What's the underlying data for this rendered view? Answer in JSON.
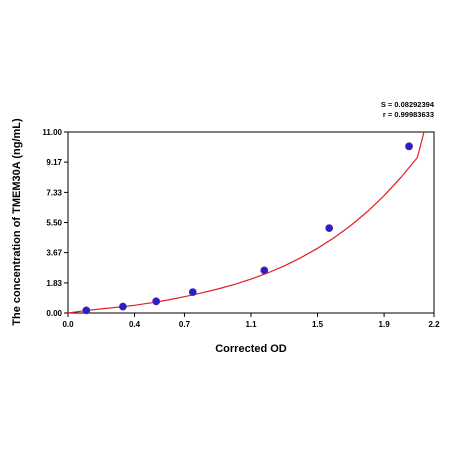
{
  "stats": {
    "s_line": "S = 0.08292394",
    "r_line": "r = 0.99983633"
  },
  "chart_data": {
    "type": "scatter",
    "xlabel": "Corrected OD",
    "ylabel": "The concentration of TMEM30A (ng/mL)",
    "xlim": [
      0,
      2.2
    ],
    "ylim": [
      0,
      11
    ],
    "xticks": [
      "0.0",
      "0.4",
      "0.7",
      "1.1",
      "1.5",
      "1.9",
      "2.2"
    ],
    "xtick_values": [
      0,
      0.4,
      0.7,
      1.1,
      1.5,
      1.9,
      2.2
    ],
    "yticks": [
      "0.00",
      "1.83",
      "3.67",
      "5.50",
      "7.33",
      "9.17",
      "11.00"
    ],
    "ytick_values": [
      0,
      1.83,
      3.67,
      5.5,
      7.33,
      9.17,
      11.0
    ],
    "points": [
      {
        "x": 0.11,
        "y": 0.16
      },
      {
        "x": 0.33,
        "y": 0.39
      },
      {
        "x": 0.53,
        "y": 0.71
      },
      {
        "x": 0.75,
        "y": 1.27
      },
      {
        "x": 1.18,
        "y": 2.59
      },
      {
        "x": 1.57,
        "y": 5.16
      },
      {
        "x": 2.05,
        "y": 10.13
      }
    ],
    "fit_curve": {
      "x": [
        0.0,
        0.1,
        0.2,
        0.3,
        0.4,
        0.5,
        0.6,
        0.7,
        0.8,
        0.9,
        1.0,
        1.1,
        1.2,
        1.3,
        1.4,
        1.5,
        1.6,
        1.7,
        1.8,
        1.9,
        2.0,
        2.1,
        2.14
      ],
      "y": [
        0.0,
        0.14,
        0.25,
        0.35,
        0.47,
        0.62,
        0.79,
        0.99,
        1.21,
        1.46,
        1.74,
        2.06,
        2.43,
        2.86,
        3.36,
        3.93,
        4.58,
        5.32,
        6.17,
        7.13,
        8.22,
        9.45,
        11.0
      ]
    },
    "grid": false,
    "point_color": "#2222cc",
    "curve_color": "#e02020"
  }
}
